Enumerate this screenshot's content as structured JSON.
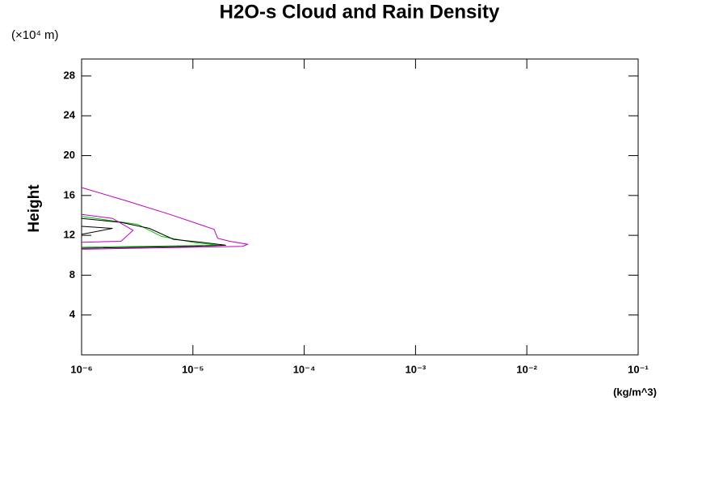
{
  "chart_data": {
    "type": "line",
    "title": "H2O-s Cloud and Rain Density",
    "y_unit": "(×10⁴ m)",
    "ylabel": "Height",
    "x_unit": "(kg/m^3)",
    "xscale": "log",
    "xlim": [
      1e-06,
      0.1
    ],
    "xticks": [
      {
        "value": 1e-06,
        "label": "10⁻⁶"
      },
      {
        "value": 1e-05,
        "label": "10⁻⁵"
      },
      {
        "value": 0.0001,
        "label": "10⁻⁴"
      },
      {
        "value": 0.001,
        "label": "10⁻³"
      },
      {
        "value": 0.01,
        "label": "10⁻²"
      },
      {
        "value": 0.1,
        "label": "10⁻¹"
      }
    ],
    "ylim": [
      0,
      29.7
    ],
    "yticks": [
      4,
      8,
      12,
      16,
      20,
      24,
      28
    ],
    "series": [
      {
        "color": "#c000c0",
        "x": [
          1e-06,
          2.46e-06,
          6.2e-06,
          1.55e-05,
          1.67e-05,
          2.15e-05,
          3.1e-05,
          2.8e-05,
          1e-05,
          1e-06
        ],
        "values": [
          16.8,
          15.5,
          14.1,
          12.6,
          11.7,
          11.4,
          11.1,
          10.9,
          10.8,
          10.6
        ]
      },
      {
        "color": "#00c000",
        "x": [
          1e-06,
          3.2e-06,
          5.2e-06,
          1e-05,
          1.67e-05,
          1e-06
        ],
        "values": [
          13.9,
          13.1,
          11.9,
          11.3,
          11.0,
          10.8
        ]
      },
      {
        "color": "#000000",
        "x": [
          1e-06,
          2.26e-06,
          4.06e-06,
          6.7e-06,
          1.2e-05,
          1.98e-05,
          1e-05,
          1e-06
        ],
        "values": [
          13.7,
          13.3,
          12.7,
          11.6,
          11.3,
          11.0,
          10.9,
          10.7
        ]
      },
      {
        "color": "#c000c0",
        "x": [
          1e-06,
          1.9e-06,
          2.9e-06,
          2.26e-06,
          1e-06
        ],
        "values": [
          14.1,
          13.7,
          12.5,
          11.4,
          11.3
        ]
      },
      {
        "color": "#000000",
        "x": [
          1e-06,
          1.9e-06,
          1e-06
        ],
        "values": [
          12.9,
          12.7,
          12.1
        ]
      }
    ]
  }
}
